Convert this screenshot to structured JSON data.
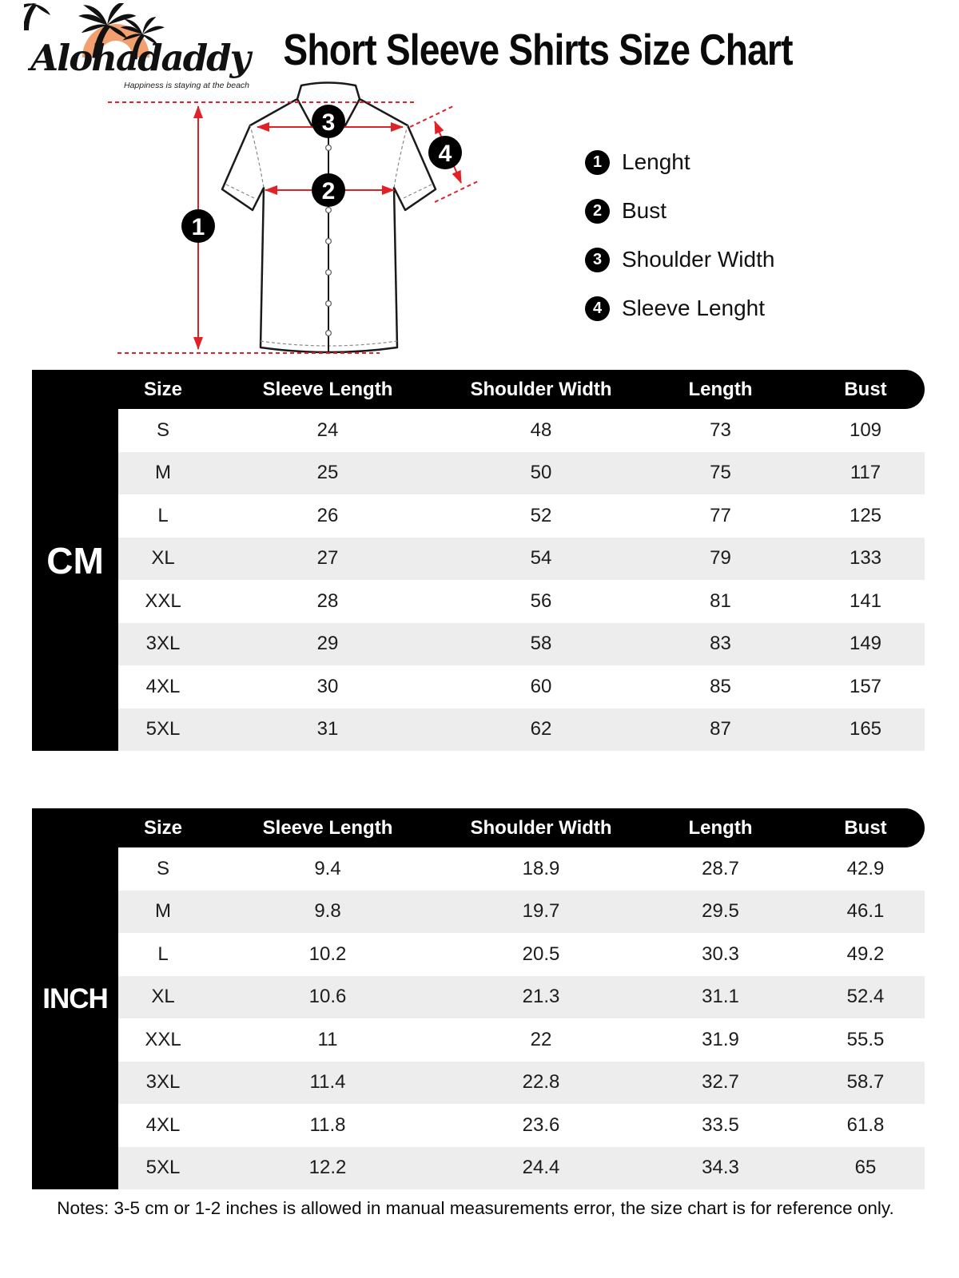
{
  "logo": {
    "brand": "Alohadaddy",
    "tagline": "Happiness is staying at the beach"
  },
  "title": "Short Sleeve Shirts Size Chart",
  "legend": {
    "items": [
      {
        "num": "1",
        "label": "Lenght"
      },
      {
        "num": "2",
        "label": "Bust"
      },
      {
        "num": "3",
        "label": "Shoulder Width"
      },
      {
        "num": "4",
        "label": "Sleeve Lenght"
      }
    ]
  },
  "diagram": {
    "callouts": {
      "length": "1",
      "bust": "2",
      "shoulder": "3",
      "sleeve": "4"
    }
  },
  "tables": [
    {
      "unit": "CM",
      "columns": [
        "Size",
        "Sleeve Length",
        "Shoulder Width",
        "Length",
        "Bust"
      ],
      "rows": [
        [
          "S",
          "24",
          "48",
          "73",
          "109"
        ],
        [
          "M",
          "25",
          "50",
          "75",
          "117"
        ],
        [
          "L",
          "26",
          "52",
          "77",
          "125"
        ],
        [
          "XL",
          "27",
          "54",
          "79",
          "133"
        ],
        [
          "XXL",
          "28",
          "56",
          "81",
          "141"
        ],
        [
          "3XL",
          "29",
          "58",
          "83",
          "149"
        ],
        [
          "4XL",
          "30",
          "60",
          "85",
          "157"
        ],
        [
          "5XL",
          "31",
          "62",
          "87",
          "165"
        ]
      ]
    },
    {
      "unit": "INCH",
      "columns": [
        "Size",
        "Sleeve Length",
        "Shoulder Width",
        "Length",
        "Bust"
      ],
      "rows": [
        [
          "S",
          "9.4",
          "18.9",
          "28.7",
          "42.9"
        ],
        [
          "M",
          "9.8",
          "19.7",
          "29.5",
          "46.1"
        ],
        [
          "L",
          "10.2",
          "20.5",
          "30.3",
          "49.2"
        ],
        [
          "XL",
          "10.6",
          "21.3",
          "31.1",
          "52.4"
        ],
        [
          "XXL",
          "11",
          "22",
          "31.9",
          "55.5"
        ],
        [
          "3XL",
          "11.4",
          "22.8",
          "32.7",
          "58.7"
        ],
        [
          "4XL",
          "11.8",
          "23.6",
          "33.5",
          "61.8"
        ],
        [
          "5XL",
          "12.2",
          "24.4",
          "34.3",
          "65"
        ]
      ]
    }
  ],
  "notes": "Notes: 3-5 cm or 1-2 inches is allowed in manual measurements error, the size chart is for reference only.",
  "colors": {
    "accent_red": "#E02128",
    "logo_sun": "#F2A06F",
    "table_black": "#000000",
    "row_alt": "#EDEDED"
  }
}
